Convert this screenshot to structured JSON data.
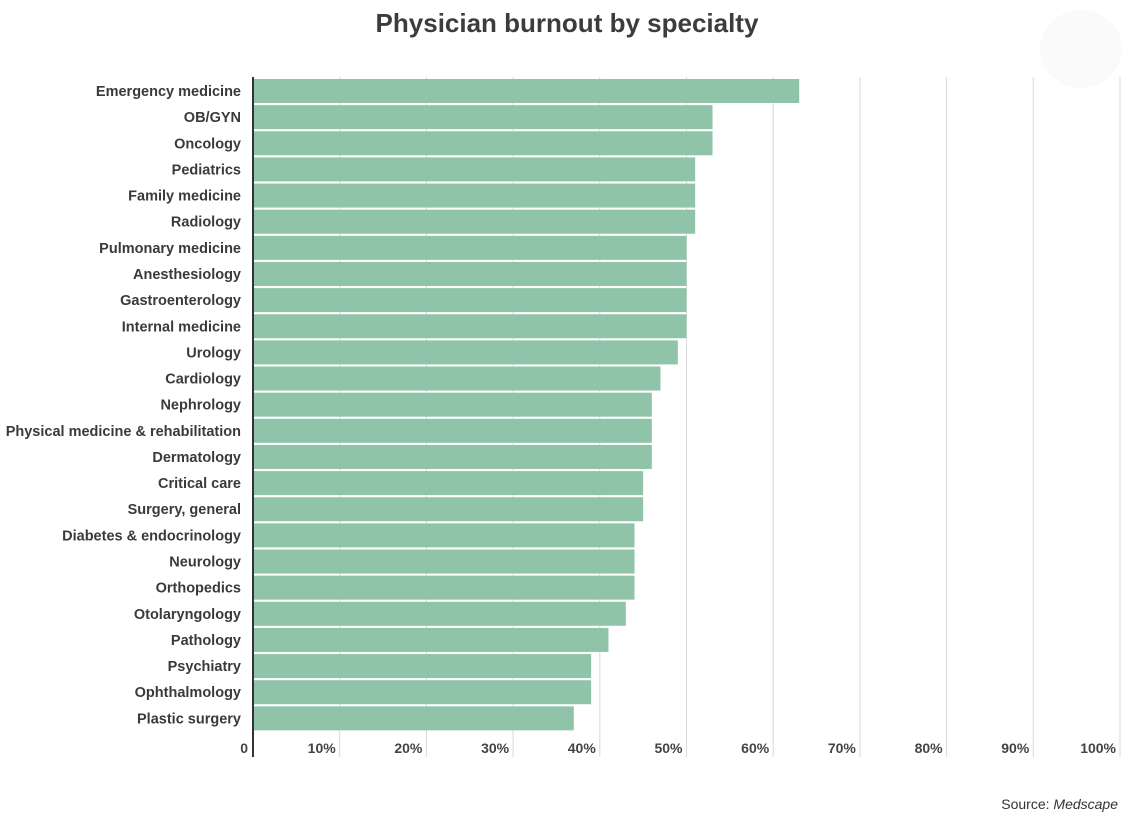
{
  "title": "Physician burnout by specialty",
  "source": {
    "prefix": "Source:",
    "name": "Medscape"
  },
  "chart_data": {
    "type": "bar",
    "orientation": "horizontal",
    "title": "Physician burnout by specialty",
    "xlabel": "",
    "ylabel": "",
    "xlim": [
      0,
      100
    ],
    "x_ticks": [
      0,
      10,
      20,
      30,
      40,
      50,
      60,
      70,
      80,
      90,
      100
    ],
    "x_tick_labels": [
      "0",
      "10%",
      "20%",
      "30%",
      "40%",
      "50%",
      "60%",
      "70%",
      "80%",
      "90%",
      "100%"
    ],
    "grid": "vertical",
    "legend": "none",
    "bar_color": "#8fc4a8",
    "categories": [
      "Emergency medicine",
      "OB/GYN",
      "Oncology",
      "Pediatrics",
      "Family medicine",
      "Radiology",
      "Pulmonary medicine",
      "Anesthesiology",
      "Gastroenterology",
      "Internal medicine",
      "Urology",
      "Cardiology",
      "Nephrology",
      "Physical medicine & rehabilitation",
      "Dermatology",
      "Critical care",
      "Surgery, general",
      "Diabetes & endocrinology",
      "Neurology",
      "Orthopedics",
      "Otolaryngology",
      "Pathology",
      "Psychiatry",
      "Ophthalmology",
      "Plastic surgery"
    ],
    "values": [
      63,
      53,
      53,
      51,
      51,
      51,
      50,
      50,
      50,
      50,
      49,
      47,
      46,
      46,
      46,
      45,
      45,
      44,
      44,
      44,
      43,
      41,
      39,
      39,
      37
    ]
  }
}
